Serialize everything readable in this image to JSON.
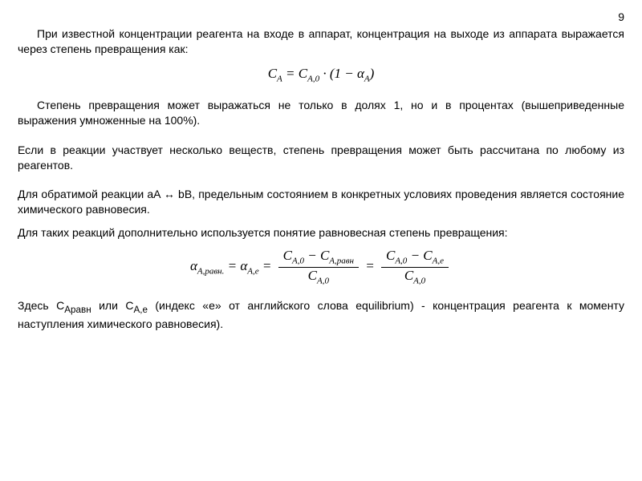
{
  "meta": {
    "page_number": "9",
    "background_color": "#ffffff",
    "text_color": "#000000",
    "body_font": "Arial",
    "math_font": "Times New Roman",
    "body_fontsize_pt": 14,
    "math_fontsize_pt": 17
  },
  "paragraphs": {
    "p1": "При известной концентрации реагента на входе в аппарат, концентрация на выходе из аппарата выражается через степень превращения как:",
    "p2": "Степень превращения может выражаться не только в долях 1, но и в процентах (вышеприведенные выражения умноженные на 100%).",
    "p3": "Если в реакции участвует несколько веществ, степень превращения может быть рассчитана по любому из реагентов.",
    "p4": "Для обратимой реакции aA ↔ bB, предельным состоянием в конкретных условиях проведения является состояние химического равновесия.",
    "p5": "Для таких реакций дополнительно используется понятие равновесная степень превращения:",
    "p6_pre": "Здесь С",
    "p6_sub1": "Аравн",
    "p6_mid1": " или С",
    "p6_sub2": "А,е",
    "p6_post": " (индекс «e» от английского слова equilibrium) - концентрация реагента к моменту наступления химического равновесия)."
  },
  "equations": {
    "eq1": {
      "lhs": "C",
      "lhs_sub": "A",
      "rhs1": "C",
      "rhs1_sub": "A,0",
      "mult": " · (1 − α",
      "alpha_sub": "A",
      "close": ")"
    },
    "eq2": {
      "a1": "α",
      "a1_sub": "A,равн.",
      "eq": " = ",
      "a2": "α",
      "a2_sub": "A,e",
      "frac1_num_a": "C",
      "frac1_num_a_sub": "A,0",
      "frac1_num_minus": " − ",
      "frac1_num_b": "C",
      "frac1_num_b_sub": "A,равн",
      "frac1_den": "C",
      "frac1_den_sub": "A,0",
      "frac2_num_a": "C",
      "frac2_num_a_sub": "A,0",
      "frac2_num_minus": " − ",
      "frac2_num_b": "C",
      "frac2_num_b_sub": "A,e",
      "frac2_den": "C",
      "frac2_den_sub": "A,0"
    }
  }
}
